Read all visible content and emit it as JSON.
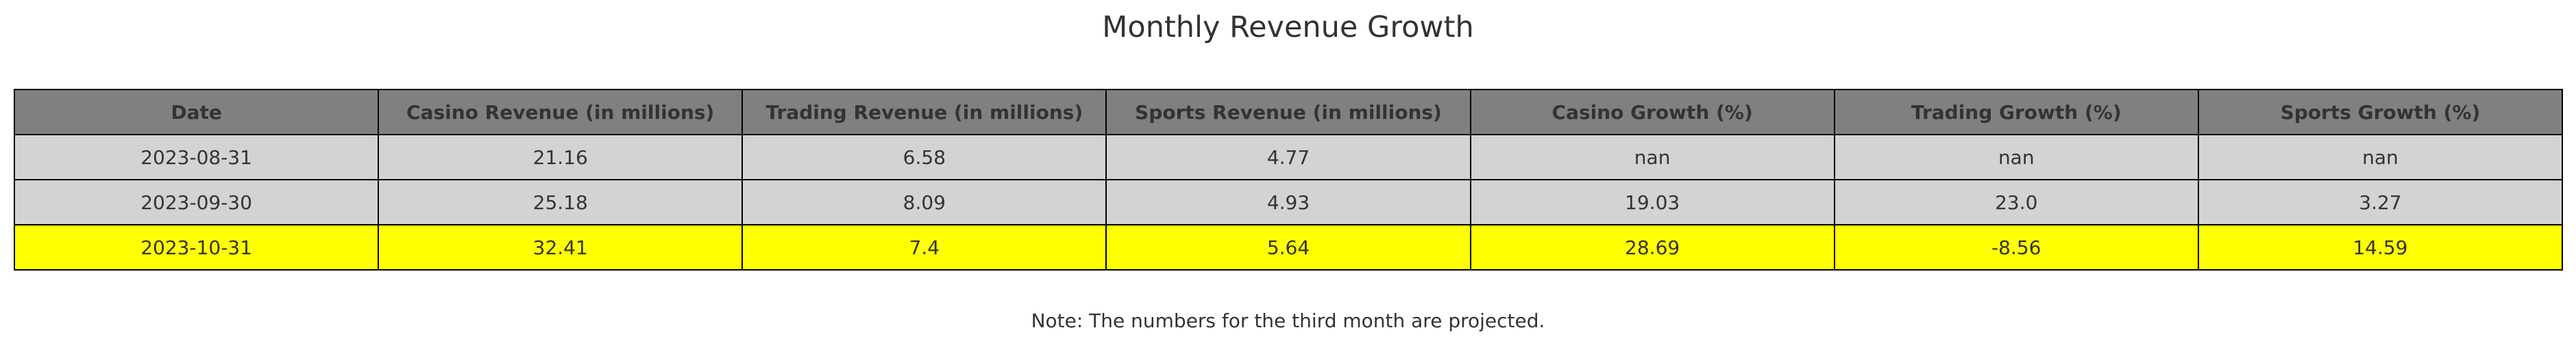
{
  "chart_data": {
    "type": "table",
    "title": "Monthly Revenue Growth",
    "columns": [
      "Date",
      "Casino Revenue (in millions)",
      "Trading Revenue (in millions)",
      "Sports Revenue (in millions)",
      "Casino Growth (%)",
      "Trading Growth (%)",
      "Sports Growth (%)"
    ],
    "rows": [
      [
        "2023-08-31",
        "21.16",
        "6.58",
        "4.77",
        "nan",
        "nan",
        "nan"
      ],
      [
        "2023-09-30",
        "25.18",
        "8.09",
        "4.93",
        "19.03",
        "23.0",
        "3.27"
      ],
      [
        "2023-10-31",
        "32.41",
        "7.4",
        "5.64",
        "28.69",
        "-8.56",
        "14.59"
      ]
    ],
    "note": "Note: The numbers for the third month are projected.",
    "colors": {
      "header_bg": "#808080",
      "row_bg": "#d3d3d3",
      "highlight_bg": "#ffff00",
      "border": "#000000",
      "text": "#333333"
    },
    "highlight_row_index": 2
  }
}
